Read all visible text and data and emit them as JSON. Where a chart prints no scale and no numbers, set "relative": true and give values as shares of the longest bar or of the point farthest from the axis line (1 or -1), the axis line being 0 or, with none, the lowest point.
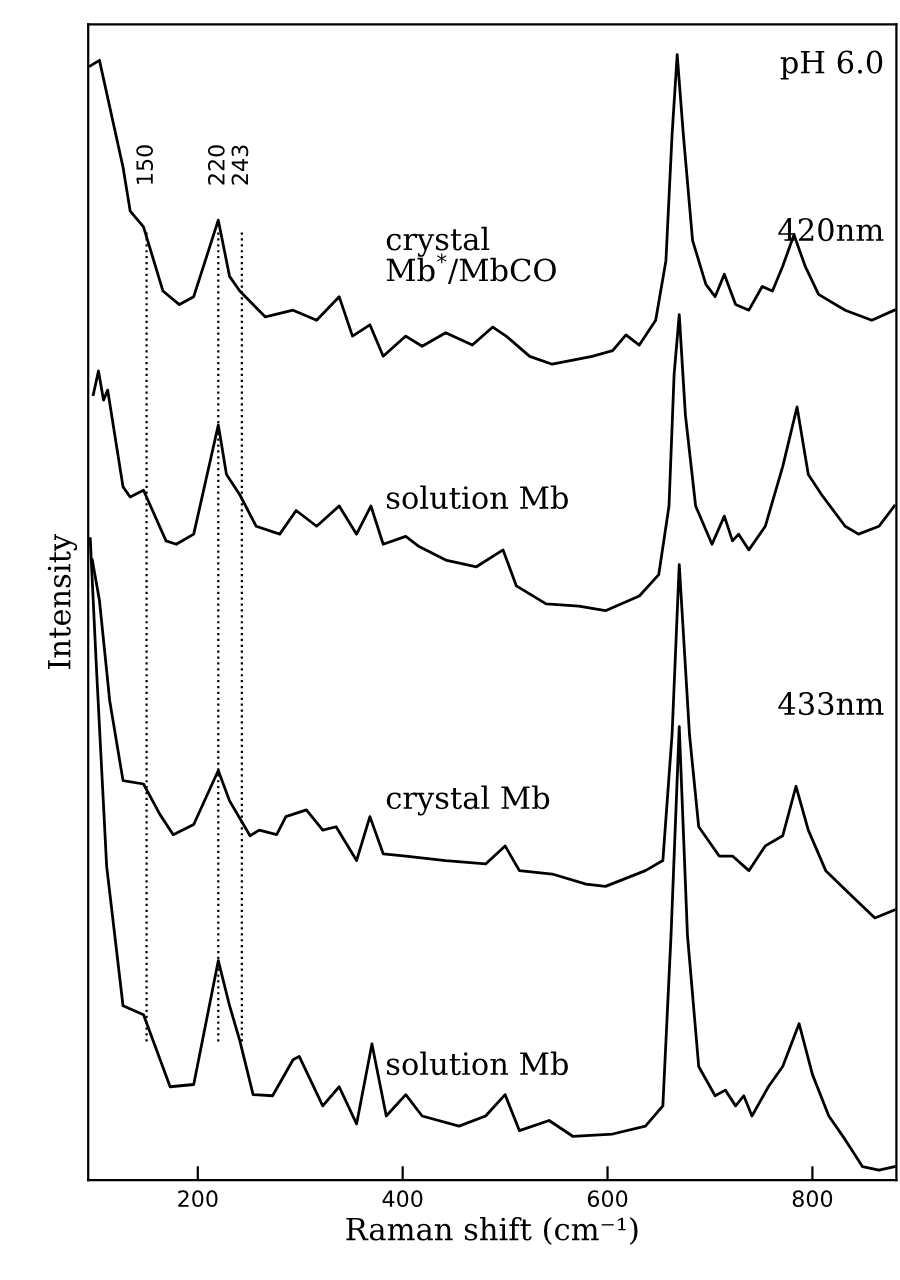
{
  "chart_data": {
    "type": "line",
    "relative": true,
    "xlabel": "Raman shift (cm⁻¹)",
    "ylabel": "Intensity",
    "xlim": [
      93,
      882
    ],
    "xticks": [
      200,
      400,
      600,
      800
    ],
    "grid": false,
    "legend": false,
    "marker": "none",
    "line_style": "solid",
    "annotations": [
      "pH 6.0",
      "420nm",
      "433nm"
    ],
    "ref_lines": [
      {
        "axis": "x",
        "value": 150,
        "label": "150",
        "line_style": "dotted",
        "color": "#000000"
      },
      {
        "axis": "x",
        "value": 220,
        "label": "220",
        "line_style": "dotted",
        "color": "#000000"
      },
      {
        "axis": "x",
        "value": 243,
        "label": "243",
        "line_style": "dotted",
        "color": "#000000"
      }
    ],
    "series": [
      {
        "name": "crystal\nMb$^{*}$/MbCO",
        "color": "#000000",
        "x": [
          95,
          104,
          127,
          134,
          147,
          166,
          182,
          196,
          220,
          231,
          241,
          266,
          293,
          316,
          338,
          351,
          368,
          381,
          403,
          419,
          442,
          468,
          488,
          501,
          524,
          546,
          585,
          605,
          618,
          631,
          647,
          657,
          663,
          668,
          674,
          683,
          696,
          705,
          714,
          725,
          738,
          751,
          761,
          771,
          782,
          793,
          806,
          832,
          858,
          880
        ],
        "values": [
          0.99,
          0.995,
          0.9,
          0.861,
          0.847,
          0.79,
          0.778,
          0.785,
          0.853,
          0.803,
          0.79,
          0.767,
          0.773,
          0.764,
          0.785,
          0.75,
          0.76,
          0.732,
          0.75,
          0.741,
          0.753,
          0.742,
          0.758,
          0.75,
          0.732,
          0.725,
          0.732,
          0.737,
          0.751,
          0.742,
          0.764,
          0.817,
          0.929,
          1.0,
          0.929,
          0.835,
          0.796,
          0.785,
          0.805,
          0.778,
          0.773,
          0.794,
          0.79,
          0.812,
          0.84,
          0.812,
          0.787,
          0.773,
          0.764,
          0.773
        ]
      },
      {
        "name": "solution Mb",
        "color": "#000000",
        "x": [
          98,
          103,
          108,
          112,
          127,
          134,
          147,
          169,
          179,
          196,
          220,
          228,
          241,
          257,
          280,
          296,
          316,
          338,
          355,
          369,
          381,
          403,
          416,
          442,
          472,
          498,
          511,
          540,
          572,
          598,
          631,
          650,
          660,
          665,
          670,
          676,
          686,
          702,
          714,
          722,
          728,
          738,
          754,
          771,
          785,
          796,
          809,
          832,
          845,
          865,
          880
        ],
        "values": [
          0.698,
          0.719,
          0.693,
          0.702,
          0.616,
          0.607,
          0.613,
          0.568,
          0.565,
          0.574,
          0.671,
          0.627,
          0.609,
          0.581,
          0.574,
          0.595,
          0.581,
          0.599,
          0.574,
          0.599,
          0.565,
          0.572,
          0.563,
          0.551,
          0.545,
          0.56,
          0.528,
          0.512,
          0.51,
          0.506,
          0.519,
          0.538,
          0.599,
          0.716,
          0.769,
          0.68,
          0.599,
          0.565,
          0.59,
          0.568,
          0.574,
          0.56,
          0.581,
          0.634,
          0.687,
          0.627,
          0.609,
          0.581,
          0.574,
          0.581,
          0.599
        ]
      },
      {
        "name": "crystal Mb",
        "color": "#000000",
        "x": [
          97,
          104,
          114,
          127,
          147,
          163,
          176,
          196,
          220,
          231,
          251,
          260,
          277,
          286,
          306,
          322,
          335,
          355,
          368,
          381,
          403,
          442,
          481,
          500,
          514,
          546,
          579,
          598,
          637,
          654,
          663,
          670,
          680,
          689,
          709,
          722,
          738,
          754,
          771,
          784,
          796,
          813,
          839,
          861,
          880
        ],
        "values": [
          0.551,
          0.515,
          0.426,
          0.355,
          0.352,
          0.325,
          0.307,
          0.316,
          0.364,
          0.337,
          0.306,
          0.311,
          0.307,
          0.323,
          0.329,
          0.311,
          0.314,
          0.284,
          0.323,
          0.29,
          0.288,
          0.284,
          0.281,
          0.297,
          0.275,
          0.272,
          0.263,
          0.261,
          0.275,
          0.284,
          0.396,
          0.547,
          0.396,
          0.314,
          0.288,
          0.288,
          0.275,
          0.297,
          0.306,
          0.35,
          0.311,
          0.275,
          0.252,
          0.233,
          0.24
        ]
      },
      {
        "name": "solution Mb",
        "color": "#000000",
        "x": [
          95,
          101,
          111,
          127,
          147,
          173,
          196,
          220,
          231,
          241,
          254,
          273,
          293,
          299,
          322,
          338,
          355,
          370,
          384,
          403,
          419,
          455,
          481,
          500,
          514,
          543,
          566,
          605,
          637,
          654,
          662,
          670,
          678,
          689,
          705,
          715,
          725,
          733,
          741,
          757,
          771,
          787,
          800,
          816,
          832,
          849,
          865,
          880
        ],
        "values": [
          0.57,
          0.456,
          0.279,
          0.155,
          0.147,
          0.083,
          0.085,
          0.195,
          0.155,
          0.124,
          0.076,
          0.075,
          0.107,
          0.11,
          0.066,
          0.083,
          0.05,
          0.121,
          0.057,
          0.076,
          0.057,
          0.048,
          0.057,
          0.076,
          0.044,
          0.053,
          0.039,
          0.041,
          0.048,
          0.066,
          0.218,
          0.403,
          0.218,
          0.101,
          0.075,
          0.08,
          0.066,
          0.075,
          0.057,
          0.083,
          0.101,
          0.139,
          0.094,
          0.057,
          0.036,
          0.012,
          0.009,
          0.012
        ]
      }
    ]
  }
}
